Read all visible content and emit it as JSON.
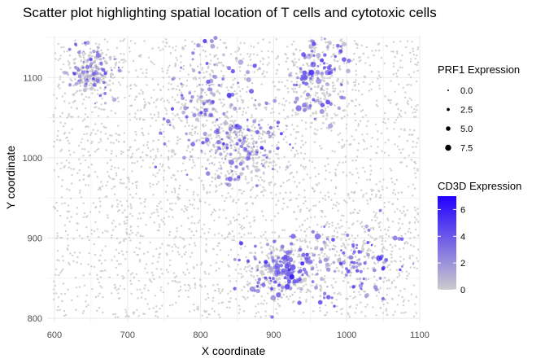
{
  "chart_data": {
    "type": "scatter",
    "title": "Scatter plot highlighting spatial location of T cells and cytotoxic cells",
    "xlabel": "X coordinate",
    "ylabel": "Y coordinate",
    "xlim": [
      590,
      1100
    ],
    "ylim": [
      795,
      1152
    ],
    "x_ticks": [
      600,
      700,
      800,
      900,
      1000,
      1100
    ],
    "y_ticks": [
      800,
      900,
      1000,
      1100
    ],
    "grid": true,
    "background": "#ffffff",
    "gridline_color": "#ebebeb",
    "low_color": "#cccccc",
    "high_color": "#2200ff",
    "size_legend": {
      "title": "PRF1 Expression",
      "values": [
        0.0,
        2.5,
        5.0,
        7.5
      ],
      "labels": [
        "0.0",
        "2.5",
        "5.0",
        "7.5"
      ]
    },
    "color_legend": {
      "title": "CD3D Expression",
      "min": 0,
      "max": 7,
      "ticks": [
        0,
        2,
        4,
        6
      ],
      "labels": [
        "0",
        "2",
        "4",
        "6"
      ]
    },
    "clusters": [
      {
        "region": "lower-right ring",
        "x_center": 1000,
        "y_center": 870,
        "x_spread": 50,
        "y_spread": 25,
        "typical_cd3d": 2.5,
        "typical_prf1": 2.0
      },
      {
        "region": "lower-right interior",
        "x_center": 910,
        "y_center": 860,
        "x_spread": 25,
        "y_spread": 18,
        "typical_cd3d": 3.0,
        "typical_prf1": 2.5
      },
      {
        "region": "upper-middle",
        "x_center": 815,
        "y_center": 1060,
        "x_spread": 35,
        "y_spread": 45,
        "typical_cd3d": 2.5,
        "typical_prf1": 2.0
      },
      {
        "region": "upper-right",
        "x_center": 960,
        "y_center": 1100,
        "x_spread": 25,
        "y_spread": 30,
        "typical_cd3d": 3.0,
        "typical_prf1": 2.5
      },
      {
        "region": "top-left ring",
        "x_center": 650,
        "y_center": 1105,
        "x_spread": 15,
        "y_spread": 15,
        "typical_cd3d": 2.0,
        "typical_prf1": 1.5
      },
      {
        "region": "middle",
        "x_center": 860,
        "y_center": 1010,
        "x_spread": 25,
        "y_spread": 20,
        "typical_cd3d": 2.0,
        "typical_prf1": 1.5
      }
    ]
  }
}
